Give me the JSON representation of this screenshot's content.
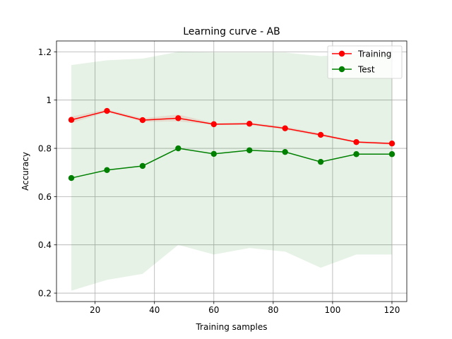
{
  "chart_data": {
    "type": "line",
    "title": "Learning curve - AB",
    "xlabel": "Training samples",
    "ylabel": "Accuracy",
    "xlim": [
      7,
      125
    ],
    "ylim": [
      0.165,
      1.245
    ],
    "xticks": [
      20,
      40,
      60,
      80,
      100,
      120
    ],
    "yticks": [
      0.2,
      0.4,
      0.6,
      0.8,
      1.0,
      1.2
    ],
    "grid": true,
    "legend_position": "top-right",
    "x": [
      12,
      24,
      36,
      48,
      60,
      72,
      84,
      96,
      108,
      120
    ],
    "series": [
      {
        "name": "Training",
        "color": "#ff0000",
        "values": [
          0.918,
          0.955,
          0.917,
          0.925,
          0.9,
          0.902,
          0.883,
          0.856,
          0.826,
          0.82
        ],
        "band_lower": [
          0.905,
          0.95,
          0.91,
          0.912,
          0.897,
          0.897,
          0.877,
          0.85,
          0.822,
          0.815
        ],
        "band_upper": [
          0.932,
          0.962,
          0.925,
          0.94,
          0.905,
          0.907,
          0.89,
          0.862,
          0.83,
          0.825
        ]
      },
      {
        "name": "Test",
        "color": "#008000",
        "values": [
          0.677,
          0.71,
          0.727,
          0.8,
          0.777,
          0.792,
          0.785,
          0.744,
          0.776,
          0.776
        ],
        "band_lower": [
          0.21,
          0.255,
          0.28,
          0.4,
          0.36,
          0.387,
          0.372,
          0.305,
          0.36,
          0.36
        ],
        "band_upper": [
          1.145,
          1.165,
          1.172,
          1.2,
          1.197,
          1.197,
          1.197,
          1.182,
          1.19,
          1.19
        ]
      }
    ]
  }
}
